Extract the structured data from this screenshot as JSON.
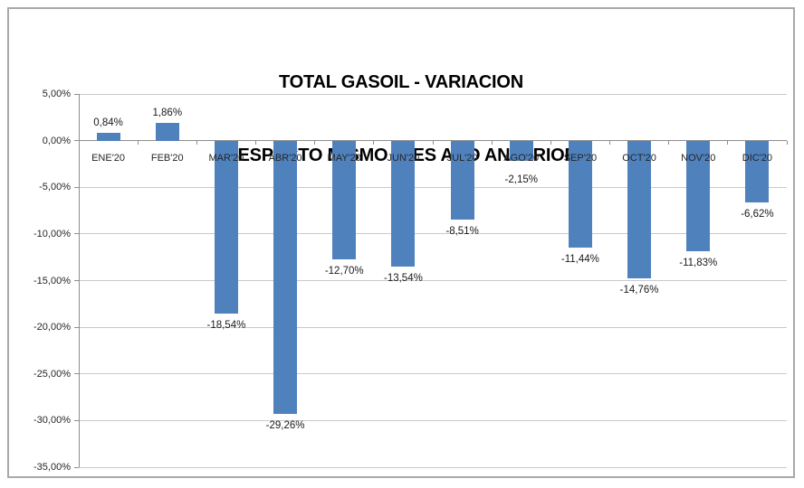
{
  "chart": {
    "title_line1": "TOTAL GASOIL - VARIACION",
    "title_line2": "RESPECTO MISMO  MES AÑO ANTERIOR"
  },
  "chart_data": {
    "type": "bar",
    "title": "TOTAL GASOIL - VARIACION RESPECTO MISMO MES AÑO ANTERIOR",
    "categories": [
      "ENE'20",
      "FEB'20",
      "MAR'20",
      "ABR'20",
      "MAY'20",
      "JUN'20",
      "JUL'20",
      "AGO'20",
      "SEP'20",
      "OCT'20",
      "NOV'20",
      "DIC'20"
    ],
    "values": [
      0.84,
      1.86,
      -18.54,
      -29.26,
      -12.7,
      -13.54,
      -8.51,
      -2.15,
      -11.44,
      -14.76,
      -11.83,
      -6.62
    ],
    "data_labels": [
      "0,84%",
      "1,86%",
      "-18,54%",
      "-29,26%",
      "-12,70%",
      "-13,54%",
      "-8,51%",
      "-2,15%",
      "-11,44%",
      "-14,76%",
      "-11,83%",
      "-6,62%"
    ],
    "xlabel": "",
    "ylabel": "",
    "ylim": [
      -35,
      5
    ],
    "ytick_step": 5,
    "ytick_labels": [
      "5,00%",
      "0,00%",
      "-5,00%",
      "-10,00%",
      "-15,00%",
      "-20,00%",
      "-25,00%",
      "-30,00%",
      "-35,00%"
    ],
    "grid": true,
    "legend": false,
    "bar_color": "#4F81BD",
    "gridline_color": "#C9C9C9",
    "axis_color": "#8E8E8E",
    "text_color": "#262626",
    "border_color": "#A9A9A9",
    "background_color": "#FFFFFF"
  }
}
